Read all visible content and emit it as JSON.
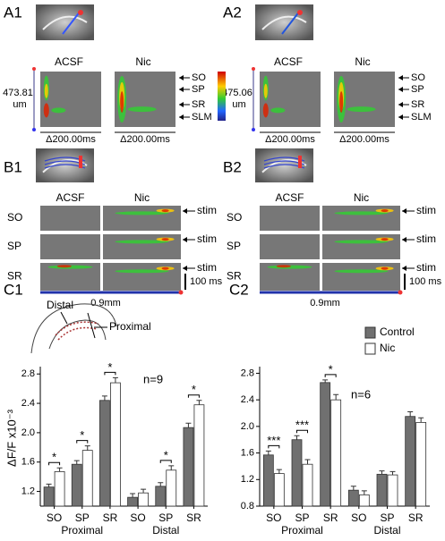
{
  "figure": {
    "panels_a": [
      {
        "label": "A1",
        "conditions": [
          "ACSF",
          "Nic"
        ],
        "scale": "473.81",
        "scale_unit": "um",
        "time_scale": "Δ200.00ms",
        "layers": [
          "SO",
          "SP",
          "SR",
          "SLM"
        ]
      },
      {
        "label": "A2",
        "conditions": [
          "ACSF",
          "Nic"
        ],
        "scale": "475.06",
        "scale_unit": "um",
        "time_scale": "Δ200.00ms",
        "layers": [
          "SO",
          "SP",
          "SR",
          "SLM"
        ]
      }
    ],
    "panels_b": [
      {
        "label": "B1",
        "conditions": [
          "ACSF",
          "Nic"
        ],
        "layers": [
          "SO",
          "SP",
          "SR"
        ],
        "stim": "stim",
        "time_bar": "100 ms",
        "distance": "0.9mm"
      },
      {
        "label": "B2",
        "conditions": [
          "ACSF",
          "Nic"
        ],
        "layers": [
          "SO",
          "SP",
          "SR"
        ],
        "stim": "stim",
        "time_bar": "100 ms",
        "distance": "0.9mm"
      }
    ],
    "diagram": {
      "distal": "Distal",
      "proximal": "Proximal"
    }
  },
  "chart_data": [
    {
      "type": "bar",
      "title": "C1",
      "ylabel": "ΔF/F x10⁻³",
      "annotation": "n=9",
      "groups": [
        "Proximal",
        "Distal"
      ],
      "categories": [
        "SO",
        "SP",
        "SR",
        "SO",
        "SP",
        "SR"
      ],
      "significance": [
        "*",
        "*",
        "*",
        null,
        "*",
        "*"
      ],
      "ylim": [
        1.0,
        2.9
      ],
      "yticks": [
        1.2,
        1.6,
        {
          "value": 2.0,
          "label": "2.0"
        },
        2.4,
        2.8
      ],
      "series": [
        {
          "color": "#707070",
          "values": [
            1.26,
            1.57,
            2.44,
            1.12,
            1.27,
            2.07
          ],
          "errors": [
            0.04,
            0.05,
            0.06,
            0.05,
            0.05,
            0.06
          ]
        },
        {
          "color": "#ffffff",
          "values": [
            1.47,
            1.76,
            2.68,
            1.18,
            1.49,
            2.38
          ],
          "errors": [
            0.05,
            0.06,
            0.07,
            0.05,
            0.06,
            0.06
          ]
        }
      ]
    },
    {
      "type": "bar",
      "title": "C2",
      "ylabel": "ΔF/F x10⁻³",
      "annotation": "n=6",
      "groups": [
        "Proximal",
        "Distal"
      ],
      "categories": [
        "SO",
        "SP",
        "SR",
        "SO",
        "SP",
        "SR"
      ],
      "significance": [
        "***",
        "***",
        "*",
        null,
        null,
        null
      ],
      "ylim": [
        0.8,
        2.9
      ],
      "yticks": [
        0.8,
        1.2,
        1.6,
        {
          "value": 2.0,
          "label": "2.0"
        },
        2.4,
        2.8
      ],
      "series": [
        {
          "name": "Control",
          "color": "#707070",
          "values": [
            1.57,
            1.8,
            2.66,
            1.04,
            1.28,
            2.15
          ],
          "errors": [
            0.06,
            0.06,
            0.04,
            0.06,
            0.05,
            0.07
          ]
        },
        {
          "name": "Nic",
          "color": "#ffffff",
          "values": [
            1.29,
            1.43,
            2.4,
            0.97,
            1.27,
            2.06
          ],
          "errors": [
            0.06,
            0.07,
            0.08,
            0.06,
            0.05,
            0.07
          ]
        }
      ]
    }
  ]
}
